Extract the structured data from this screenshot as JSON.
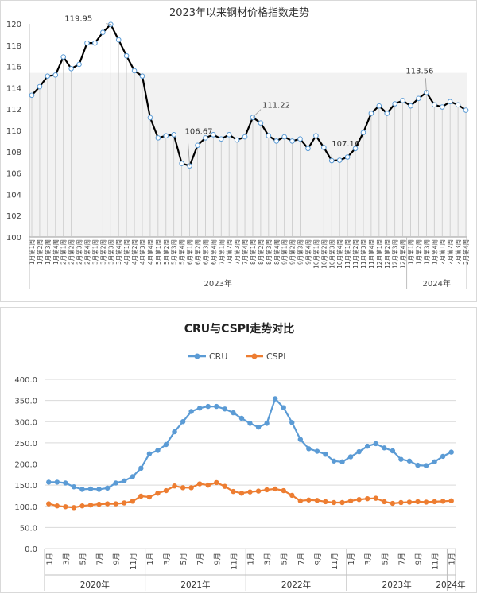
{
  "chart_data": [
    {
      "type": "line",
      "title": "2023年以来钢材价格指数走势",
      "ylim": [
        100,
        120
      ],
      "yticks": [
        100,
        102,
        104,
        106,
        108,
        110,
        112,
        114,
        116,
        118,
        120
      ],
      "grid": false,
      "categories": [
        "1月第1周",
        "1月第2周",
        "1月第3周",
        "1月第4周",
        "2月第1周",
        "2月第2周",
        "2月第3周",
        "2月第4周",
        "3月第1周",
        "3月第2周",
        "3月第3周",
        "3月第4周",
        "4月第1周",
        "4月第2周",
        "4月第3周",
        "4月第4周",
        "5月第1周",
        "5月第2周",
        "5月第3周",
        "5月第4周",
        "6月第1周",
        "6月第2周",
        "6月第3周",
        "6月第4周",
        "7月第1周",
        "7月第2周",
        "7月第3周",
        "7月第4周",
        "8月第1周",
        "8月第2周",
        "8月第3周",
        "8月第4周",
        "9月第1周",
        "9月第2周",
        "9月第3周",
        "9月第4周",
        "10月第1周",
        "10月第2周",
        "10月第3周",
        "10月第4周",
        "11月第1周",
        "11月第2周",
        "11月第3周",
        "11月第4周",
        "12月第1周",
        "12月第2周",
        "12月第3周",
        "12月第4周",
        "1月第1周",
        "1月第2周",
        "1月第3周",
        "1月第4周",
        "2月第1周",
        "2月第2周",
        "2月第3周",
        "2月第4周"
      ],
      "values": [
        113.3,
        114.1,
        115.1,
        115.2,
        116.9,
        115.8,
        116.2,
        118.2,
        118.2,
        119.2,
        119.95,
        118.5,
        117.0,
        115.6,
        115.1,
        111.2,
        109.3,
        109.5,
        109.6,
        106.9,
        106.67,
        108.6,
        109.3,
        109.6,
        109.2,
        109.6,
        109.1,
        109.4,
        111.22,
        110.7,
        109.5,
        109.0,
        109.4,
        109.0,
        109.2,
        108.3,
        109.5,
        108.4,
        107.16,
        107.2,
        107.5,
        108.3,
        109.8,
        111.6,
        112.3,
        111.6,
        112.5,
        112.8,
        112.3,
        113.0,
        113.56,
        112.4,
        112.2,
        112.7,
        112.4,
        111.9
      ],
      "annotations": [
        "119.95",
        "106.67",
        "111.22",
        "107.16",
        "113.56"
      ],
      "year_labels": [
        "2023年",
        "2024年"
      ]
    },
    {
      "type": "line",
      "title": "CRU与CSPI走势对比",
      "legend_position": "top",
      "ylim": [
        0,
        400
      ],
      "yticks": [
        "0.0",
        "50.0",
        "100.0",
        "150.0",
        "200.0",
        "250.0",
        "300.0",
        "350.0",
        "400.0"
      ],
      "grid": true,
      "categories": [
        "1月",
        "",
        "3月",
        "",
        "5月",
        "",
        "7月",
        "",
        "9月",
        "",
        "11月",
        "",
        "1月",
        "",
        "3月",
        "",
        "5月",
        "",
        "7月",
        "",
        "9月",
        "",
        "11月",
        "",
        "1月",
        "",
        "3月",
        "",
        "5月",
        "",
        "7月",
        "",
        "9月",
        "",
        "11月",
        "",
        "1月",
        "",
        "3月",
        "",
        "5月",
        "",
        "7月",
        "",
        "9月",
        "",
        "11月",
        "",
        "1月"
      ],
      "year_labels": [
        "2020年",
        "2021年",
        "2022年",
        "2023年",
        "2024年"
      ],
      "series": [
        {
          "name": "CRU",
          "color": "#5b9bd5",
          "values": [
            157,
            157,
            155,
            146,
            140,
            141,
            140,
            143,
            155,
            160,
            170,
            190,
            224,
            232,
            246,
            276,
            300,
            324,
            332,
            336,
            336,
            330,
            321,
            308,
            296,
            287,
            296,
            354,
            333,
            298,
            258,
            236,
            230,
            223,
            207,
            205,
            217,
            229,
            242,
            248,
            238,
            231,
            211,
            207,
            197,
            196,
            205,
            218,
            228
          ]
        },
        {
          "name": "CSPI",
          "color": "#ed7d31",
          "values": [
            106,
            101,
            99,
            97,
            101,
            103,
            105,
            106,
            106,
            108,
            112,
            124,
            122,
            131,
            137,
            148,
            144,
            144,
            153,
            150,
            156,
            147,
            135,
            131,
            134,
            136,
            139,
            141,
            137,
            126,
            113,
            115,
            114,
            111,
            109,
            109,
            113,
            116,
            118,
            119,
            111,
            107,
            109,
            110,
            111,
            110,
            111,
            112,
            113
          ]
        }
      ]
    }
  ]
}
